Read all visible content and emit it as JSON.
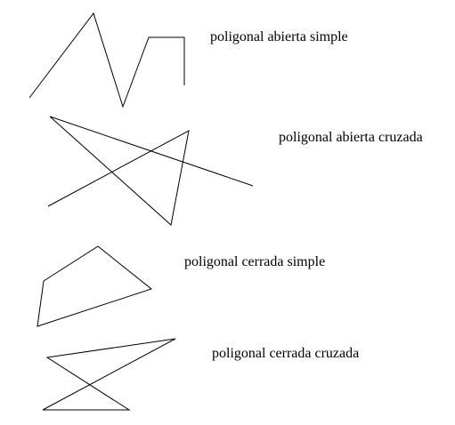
{
  "figures": [
    {
      "id": "open-simple",
      "label": "poligonal abierta simple",
      "closed": false
    },
    {
      "id": "open-crossed",
      "label": "poligonal abierta cruzada",
      "closed": false
    },
    {
      "id": "closed-simple",
      "label": "poligonal cerrada simple",
      "closed": true
    },
    {
      "id": "closed-crossed",
      "label": "poligonal cerrada cruzada",
      "closed": true
    }
  ],
  "colors": {
    "stroke": "#000000",
    "text": "#000000",
    "background": "#ffffff"
  }
}
